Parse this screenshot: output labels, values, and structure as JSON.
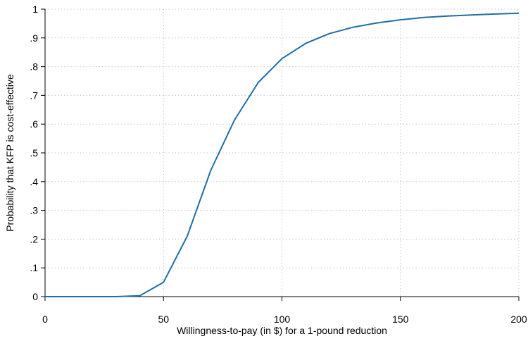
{
  "chart_data": {
    "type": "line",
    "xlabel": "Willingness-to-pay (in $) for a 1-pound reduction",
    "ylabel": "Probability that KFP is cost-effective",
    "xlim": [
      0,
      200
    ],
    "ylim": [
      0,
      1
    ],
    "x_ticks": [
      {
        "value": 0,
        "label": "0"
      },
      {
        "value": 50,
        "label": "50"
      },
      {
        "value": 100,
        "label": "100"
      },
      {
        "value": 150,
        "label": "150"
      },
      {
        "value": 200,
        "label": "200"
      }
    ],
    "y_ticks": [
      {
        "value": 0,
        "label": "0"
      },
      {
        "value": 0.1,
        "label": ".1"
      },
      {
        "value": 0.2,
        "label": ".2"
      },
      {
        "value": 0.3,
        "label": ".3"
      },
      {
        "value": 0.4,
        "label": ".4"
      },
      {
        "value": 0.5,
        "label": ".5"
      },
      {
        "value": 0.6,
        "label": ".6"
      },
      {
        "value": 0.7,
        "label": ".7"
      },
      {
        "value": 0.8,
        "label": ".8"
      },
      {
        "value": 0.9,
        "label": ".9"
      },
      {
        "value": 1,
        "label": "1"
      }
    ],
    "grid": true,
    "series": [
      {
        "color": "#1f6fa5",
        "x": [
          0,
          10,
          20,
          30,
          40,
          50,
          60,
          70,
          80,
          90,
          100,
          110,
          120,
          130,
          140,
          150,
          160,
          170,
          180,
          190,
          200
        ],
        "y": [
          0,
          0,
          0,
          0,
          0.003,
          0.05,
          0.21,
          0.44,
          0.615,
          0.745,
          0.828,
          0.881,
          0.915,
          0.937,
          0.952,
          0.963,
          0.971,
          0.976,
          0.98,
          0.983,
          0.986
        ]
      }
    ]
  }
}
